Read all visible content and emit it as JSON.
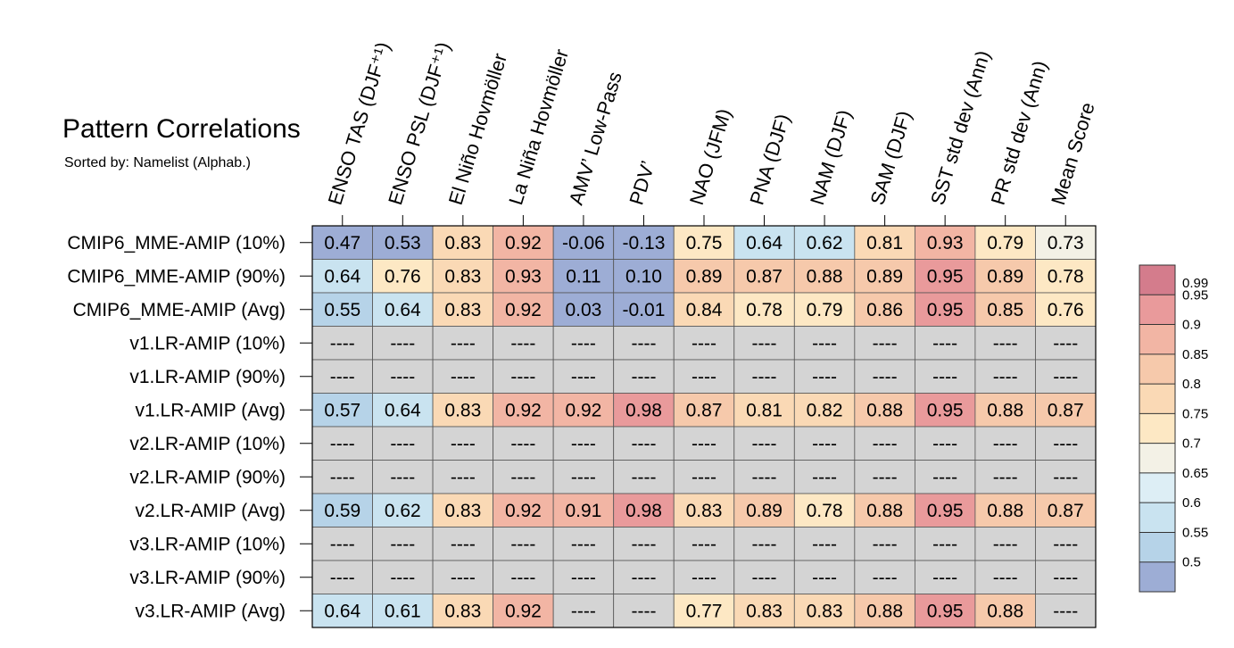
{
  "chart_data": {
    "type": "heatmap",
    "title": "Pattern Correlations",
    "subtitle": "Sorted by: Namelist (Alphab.)",
    "columns": [
      "ENSO TAS (DJF⁺¹)",
      "ENSO PSL (DJF⁺¹)",
      "El Niño Hovmöller",
      "La Niña Hovmöller",
      "AMV’ Low-Pass",
      "PDV’",
      "NAO (JFM)",
      "PNA (DJF)",
      "NAM (DJF)",
      "SAM (DJF)",
      "SST std dev (Ann)",
      "PR std dev (Ann)",
      "Mean Score"
    ],
    "rows": [
      "CMIP6_MME-AMIP (10%)",
      "CMIP6_MME-AMIP (90%)",
      "CMIP6_MME-AMIP (Avg)",
      "v1.LR-AMIP (10%)",
      "v1.LR-AMIP (90%)",
      "v1.LR-AMIP (Avg)",
      "v2.LR-AMIP (10%)",
      "v2.LR-AMIP (90%)",
      "v2.LR-AMIP (Avg)",
      "v3.LR-AMIP (10%)",
      "v3.LR-AMIP (90%)",
      "v3.LR-AMIP (Avg)"
    ],
    "values": [
      [
        "0.47",
        "0.53",
        "0.83",
        "0.92",
        "-0.06",
        "-0.13",
        "0.75",
        "0.64",
        "0.62",
        "0.81",
        "0.93",
        "0.79",
        "0.73"
      ],
      [
        "0.64",
        "0.76",
        "0.83",
        "0.93",
        "0.11",
        "0.10",
        "0.89",
        "0.87",
        "0.88",
        "0.89",
        "0.95",
        "0.89",
        "0.78"
      ],
      [
        "0.55",
        "0.64",
        "0.83",
        "0.92",
        "0.03",
        "-0.01",
        "0.84",
        "0.78",
        "0.79",
        "0.86",
        "0.95",
        "0.85",
        "0.76"
      ],
      [
        "----",
        "----",
        "----",
        "----",
        "----",
        "----",
        "----",
        "----",
        "----",
        "----",
        "----",
        "----",
        "----"
      ],
      [
        "----",
        "----",
        "----",
        "----",
        "----",
        "----",
        "----",
        "----",
        "----",
        "----",
        "----",
        "----",
        "----"
      ],
      [
        "0.57",
        "0.64",
        "0.83",
        "0.92",
        "0.92",
        "0.98",
        "0.87",
        "0.81",
        "0.82",
        "0.88",
        "0.95",
        "0.88",
        "0.87"
      ],
      [
        "----",
        "----",
        "----",
        "----",
        "----",
        "----",
        "----",
        "----",
        "----",
        "----",
        "----",
        "----",
        "----"
      ],
      [
        "----",
        "----",
        "----",
        "----",
        "----",
        "----",
        "----",
        "----",
        "----",
        "----",
        "----",
        "----",
        "----"
      ],
      [
        "0.59",
        "0.62",
        "0.83",
        "0.92",
        "0.91",
        "0.98",
        "0.83",
        "0.89",
        "0.78",
        "0.88",
        "0.95",
        "0.88",
        "0.87"
      ],
      [
        "----",
        "----",
        "----",
        "----",
        "----",
        "----",
        "----",
        "----",
        "----",
        "----",
        "----",
        "----",
        "----"
      ],
      [
        "----",
        "----",
        "----",
        "----",
        "----",
        "----",
        "----",
        "----",
        "----",
        "----",
        "----",
        "----",
        "----"
      ],
      [
        "0.64",
        "0.61",
        "0.83",
        "0.92",
        "----",
        "----",
        "0.77",
        "0.83",
        "0.83",
        "0.88",
        "0.95",
        "0.88",
        "----"
      ]
    ],
    "missing_symbol": "----",
    "missing_color": "#d4d4d4",
    "colorbar": {
      "ticks": [
        "0.99",
        "0.95",
        "0.9",
        "0.85",
        "0.8",
        "0.75",
        "0.7",
        "0.65",
        "0.6",
        "0.55",
        "0.5"
      ],
      "colors_top_to_bottom": [
        "#d47c8c",
        "#e99a9b",
        "#f2b5a4",
        "#f6c9ab",
        "#fad9b5",
        "#fde8c4",
        "#f3f1e6",
        "#ddeef5",
        "#c9e3f0",
        "#b6d3e8",
        "#9dadd5"
      ]
    }
  }
}
